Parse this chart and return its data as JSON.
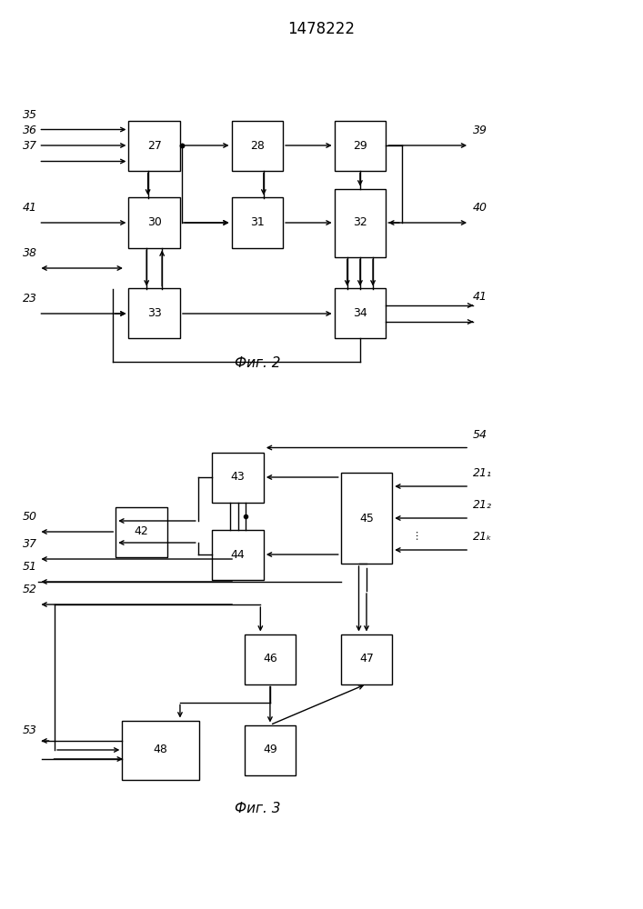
{
  "title": "1478222",
  "fig2_label": "Фиг. 2",
  "fig3_label": "Фиг. 3",
  "bg_color": "#ffffff",
  "line_color": "#000000",
  "box_color": "#ffffff",
  "font_size": 9,
  "fig2_boxes": {
    "27": [
      0.24,
      0.84,
      0.08,
      0.055
    ],
    "28": [
      0.4,
      0.84,
      0.08,
      0.055
    ],
    "29": [
      0.56,
      0.84,
      0.08,
      0.055
    ],
    "30": [
      0.24,
      0.755,
      0.08,
      0.055
    ],
    "31": [
      0.4,
      0.755,
      0.08,
      0.055
    ],
    "32": [
      0.56,
      0.755,
      0.08,
      0.075
    ],
    "33": [
      0.24,
      0.655,
      0.08,
      0.055
    ],
    "34": [
      0.56,
      0.655,
      0.08,
      0.055
    ]
  },
  "fig3_boxes": {
    "42": [
      0.22,
      0.415,
      0.08,
      0.055
    ],
    "43": [
      0.37,
      0.475,
      0.08,
      0.055
    ],
    "44": [
      0.37,
      0.39,
      0.08,
      0.055
    ],
    "45": [
      0.57,
      0.43,
      0.08,
      0.1
    ],
    "46": [
      0.42,
      0.275,
      0.08,
      0.055
    ],
    "47": [
      0.57,
      0.275,
      0.08,
      0.055
    ],
    "48": [
      0.25,
      0.175,
      0.12,
      0.065
    ],
    "49": [
      0.42,
      0.175,
      0.08,
      0.055
    ]
  }
}
